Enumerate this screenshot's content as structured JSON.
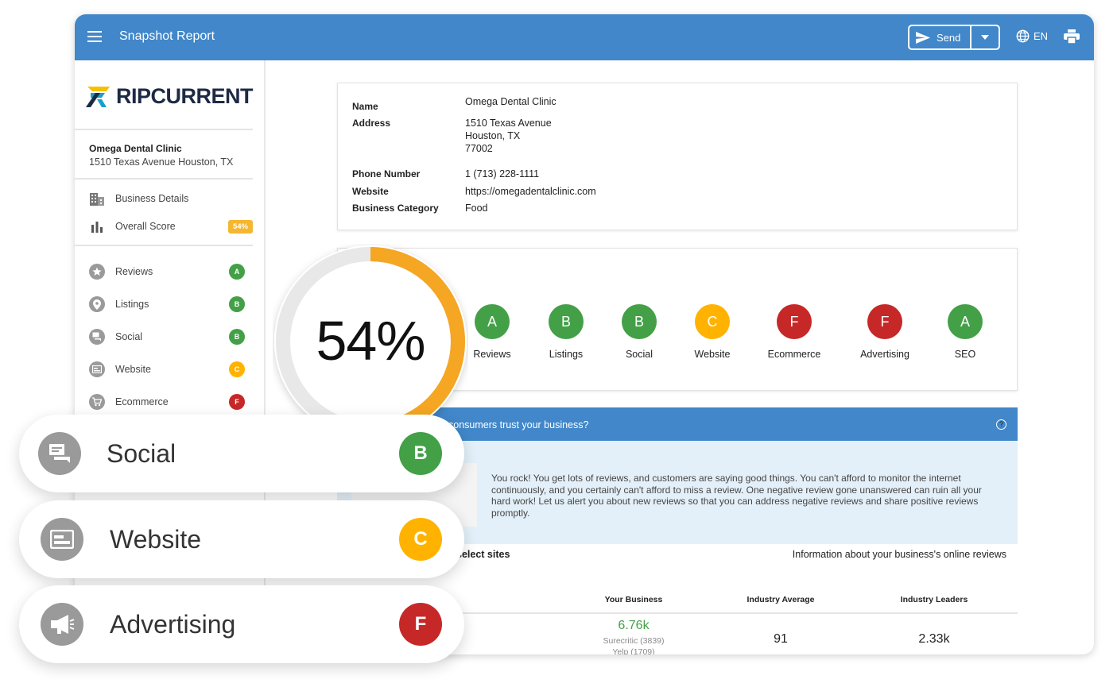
{
  "header": {
    "title": "Snapshot Report",
    "send_label": "Send",
    "lang_label": "EN"
  },
  "sidebar": {
    "logo_text": "RIPCURRENT",
    "business_name": "Omega Dental Clinic",
    "business_address": "1510 Texas Avenue Houston, TX",
    "nav": [
      {
        "label": "Business Details",
        "icon": "building-icon"
      },
      {
        "label": "Overall Score",
        "icon": "bar-chart-icon",
        "badge": "54%"
      }
    ],
    "sections": [
      {
        "label": "Reviews",
        "icon": "star-icon",
        "grade": "A"
      },
      {
        "label": "Listings",
        "icon": "location-pin-icon",
        "grade": "B"
      },
      {
        "label": "Social",
        "icon": "chat-icon",
        "grade": "B"
      },
      {
        "label": "Website",
        "icon": "browser-icon",
        "grade": "C"
      },
      {
        "label": "Ecommerce",
        "icon": "cart-icon",
        "grade": "F"
      }
    ]
  },
  "business_info": {
    "name_label": "Name",
    "name_value": "Omega Dental Clinic",
    "address_label": "Address",
    "address_line1": "1510 Texas Avenue",
    "address_line2": "Houston, TX",
    "address_line3": "77002",
    "phone_label": "Phone Number",
    "phone_value": "1 (713) 228-1111",
    "website_label": "Website",
    "website_value": "https://omegadentalclinic.com",
    "category_label": "Business Category",
    "category_value": "Food"
  },
  "grades": [
    {
      "label": "Reviews",
      "grade": "A"
    },
    {
      "label": "Listings",
      "grade": "B"
    },
    {
      "label": "Social",
      "grade": "B"
    },
    {
      "label": "Website",
      "grade": "C"
    },
    {
      "label": "Ecommerce",
      "grade": "F"
    },
    {
      "label": "Advertising",
      "grade": "F"
    },
    {
      "label": "SEO",
      "grade": "A"
    }
  ],
  "overall_score": {
    "display": "54%",
    "value": 0.54
  },
  "reviews_section": {
    "header": "consumers trust your business?",
    "body": "You rock! You get lots of reviews, and customers are saying good things. You can't afford to monitor the internet continuously, and you certainly can't afford to miss a review. One negative review gone unanswered can ruin all your hard work! Let us alert you about new reviews so that you can address negative reviews and share positive reviews promptly.",
    "sites_label": "select sites",
    "info_label": "Information about your business's online reviews",
    "columns": [
      "Your Business",
      "Industry Average",
      "Industry Leaders"
    ],
    "your_business_value": "6.76k",
    "your_business_sources": [
      "Surecritic (3839)",
      "Yelp (1709)"
    ],
    "industry_average": "91",
    "industry_leaders": "2.33k"
  },
  "floating_cards": [
    {
      "label": "Social",
      "icon": "chat-icon",
      "grade": "B"
    },
    {
      "label": "Website",
      "icon": "browser-icon",
      "grade": "C"
    },
    {
      "label": "Advertising",
      "icon": "megaphone-icon",
      "grade": "F"
    }
  ],
  "colors": {
    "primary": "#4187c9",
    "grade_A": "#43a047",
    "grade_B": "#43a047",
    "grade_C": "#ffb300",
    "grade_F": "#c62828",
    "ring_fill": "#f5a623",
    "ring_track": "#e8e8e8"
  }
}
